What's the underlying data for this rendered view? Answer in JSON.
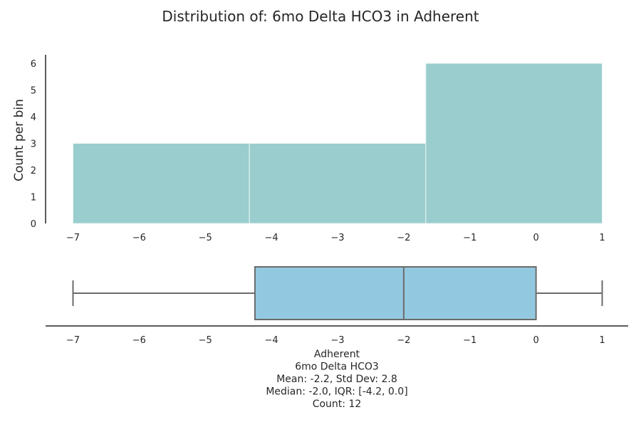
{
  "chart_data": [
    {
      "type": "histogram",
      "title": "Distribution of: 6mo Delta HCO3 in Adherent",
      "ylabel": "Count per bin",
      "xlim": [
        -7.6,
        1.3
      ],
      "ylim": [
        0,
        6.35
      ],
      "x_ticks": [
        "−7",
        "−6",
        "−5",
        "−4",
        "−3",
        "−2",
        "−1",
        "0",
        "1"
      ],
      "y_ticks": [
        "0",
        "1",
        "2",
        "3",
        "4",
        "5",
        "6"
      ],
      "bins": [
        {
          "start": -7.0,
          "end": -4.333,
          "count": 3
        },
        {
          "start": -4.333,
          "end": -1.667,
          "count": 3
        },
        {
          "start": -1.667,
          "end": 1.0,
          "count": 6
        }
      ],
      "color": "#9acdcd",
      "edge_color": "#eaf5f5",
      "grid": false
    },
    {
      "type": "boxplot",
      "xlim": [
        -7.6,
        1.3
      ],
      "x_ticks": [
        "−7",
        "−6",
        "−5",
        "−4",
        "−3",
        "−2",
        "−1",
        "0",
        "1"
      ],
      "whisker_low": -7.0,
      "q1": -4.25,
      "median": -2.0,
      "q3": 0.0,
      "whisker_high": 1.0,
      "color": "#93c9e0",
      "line_color": "#6b6b6b",
      "caption_lines": [
        "Adherent",
        "6mo Delta HCO3",
        "Mean: -2.2, Std Dev: 2.8",
        "Median: -2.0, IQR: [-4.2, 0.0]",
        "Count: 12"
      ]
    }
  ]
}
